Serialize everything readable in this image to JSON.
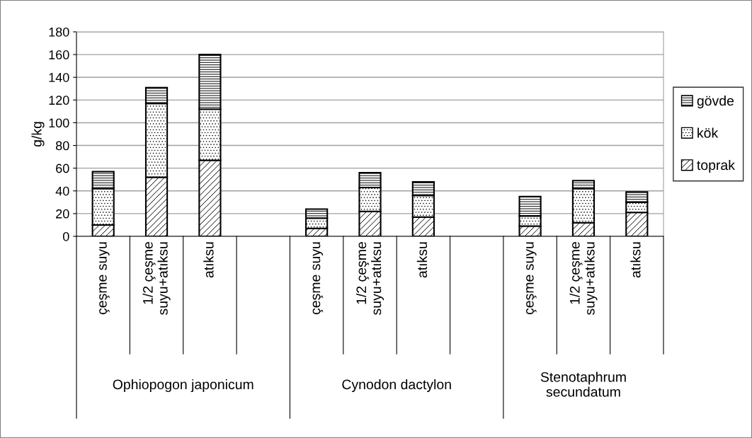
{
  "chart_data": {
    "type": "bar",
    "stacked": true,
    "ylabel": "g/kg",
    "categories": [
      "çeşme suyu",
      "1/2 çeşme\nsuyu+atıksu",
      "atıksu",
      null,
      "çeşme suyu",
      "1/2 çeşme\nsuyu+atıksu",
      "atıksu",
      null,
      "çeşme suyu",
      "1/2 çeşme\nsuyu+atıksu",
      "atıksu"
    ],
    "series": [
      {
        "name": "toprak",
        "color": "#000000",
        "values": [
          10,
          52,
          67,
          null,
          7,
          22,
          17,
          null,
          9,
          12,
          21
        ]
      },
      {
        "name": "kök",
        "color": "#000000",
        "values": [
          32,
          65,
          45,
          null,
          9,
          21,
          19,
          null,
          9,
          30,
          9
        ]
      },
      {
        "name": "gövde",
        "color": "#000000",
        "values": [
          15,
          14,
          48,
          null,
          8,
          13,
          12,
          null,
          17,
          7,
          9
        ]
      }
    ],
    "annotations": [
      "Ophiopogon japonicum",
      "Cynodon dactylon",
      "Stenotaphrum\nsecundatum"
    ],
    "ylim": [
      0,
      180
    ],
    "yticks": [
      0,
      20,
      40,
      60,
      80,
      100,
      120,
      140,
      160,
      180
    ],
    "grid": "y",
    "legend": "right"
  }
}
